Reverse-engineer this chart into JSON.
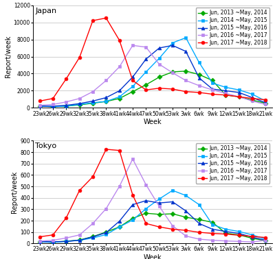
{
  "x_labels": [
    "23wk",
    "26wk",
    "29wk",
    "32wk",
    "35wk",
    "38wk",
    "41wk",
    "44wk",
    "47wk",
    "50wk",
    "53wk",
    "3wk",
    "6wk",
    "9wk",
    "12wk",
    "15wk",
    "18wk",
    "21wk"
  ],
  "x_positions": [
    0,
    1,
    2,
    3,
    4,
    5,
    6,
    7,
    8,
    9,
    10,
    11,
    12,
    13,
    14,
    15,
    16,
    17
  ],
  "japan": {
    "series": [
      {
        "label": "Jun, 2013 ~May, 2014",
        "color": "#00aa00",
        "marker": "D",
        "markerface": "#00aa00",
        "values": [
          200,
          150,
          200,
          350,
          550,
          750,
          1100,
          1900,
          2700,
          3600,
          4200,
          4300,
          3900,
          3200,
          1500,
          1300,
          900,
          550
        ]
      },
      {
        "label": "Jun, 2014 ~May, 2015",
        "color": "#00aaff",
        "marker": "s",
        "markerface": "#00aaff",
        "values": [
          200,
          150,
          200,
          400,
          600,
          750,
          1300,
          2500,
          4200,
          5800,
          7600,
          8200,
          5300,
          2900,
          2400,
          2100,
          1600,
          800
        ]
      },
      {
        "label": "Jun, 2015 ~May, 2016",
        "color": "#0033cc",
        "marker": "^",
        "markerface": "#0033cc",
        "values": [
          200,
          200,
          300,
          500,
          800,
          1200,
          2000,
          3600,
          5700,
          7000,
          7300,
          6600,
          3500,
          2200,
          2000,
          1800,
          1200,
          600
        ]
      },
      {
        "label": "Jun, 2016 ~May, 2017",
        "color": "#bb88ee",
        "marker": "s",
        "markerface": "#bb88ee",
        "values": [
          300,
          400,
          700,
          1100,
          1900,
          3200,
          4800,
          7300,
          7100,
          5100,
          4100,
          3200,
          2600,
          2100,
          1700,
          1300,
          800,
          400
        ]
      },
      {
        "label": "Jun, 2017 ~May, 2018",
        "color": "#ff0000",
        "marker": "o",
        "markerface": "#ff0000",
        "values": [
          800,
          1100,
          3400,
          5900,
          10200,
          10500,
          7900,
          3200,
          2100,
          2300,
          2200,
          1900,
          1800,
          1600,
          1500,
          1300,
          1100,
          950
        ]
      }
    ],
    "title": "Japan",
    "ylabel": "Report/week",
    "ylim": [
      0,
      12000
    ],
    "yticks": [
      0,
      2000,
      4000,
      6000,
      8000,
      10000,
      12000
    ]
  },
  "tokyo": {
    "series": [
      {
        "label": "Jun, 2013 ~May, 2014",
        "color": "#00aa00",
        "marker": "D",
        "markerface": "#00aa00",
        "values": [
          15,
          10,
          20,
          30,
          60,
          100,
          145,
          220,
          265,
          255,
          260,
          230,
          210,
          185,
          90,
          75,
          45,
          25
        ]
      },
      {
        "label": "Jun, 2014 ~May, 2015",
        "color": "#00aaff",
        "marker": "s",
        "markerface": "#00aaff",
        "values": [
          15,
          10,
          18,
          28,
          48,
          78,
          145,
          205,
          305,
          390,
          465,
          420,
          340,
          165,
          125,
          105,
          75,
          38
        ]
      },
      {
        "label": "Jun, 2015 ~May, 2016",
        "color": "#0033cc",
        "marker": "^",
        "markerface": "#0033cc",
        "values": [
          15,
          15,
          18,
          28,
          58,
          95,
          195,
          340,
          375,
          355,
          365,
          285,
          175,
          125,
          105,
          88,
          55,
          28
        ]
      },
      {
        "label": "Jun, 2016 ~May, 2017",
        "color": "#bb88ee",
        "marker": "s",
        "markerface": "#bb88ee",
        "values": [
          20,
          28,
          48,
          75,
          175,
          305,
          500,
          740,
          515,
          325,
          155,
          65,
          38,
          28,
          22,
          18,
          13,
          28
        ]
      },
      {
        "label": "Jun, 2017 ~May, 2018",
        "color": "#ff0000",
        "marker": "o",
        "markerface": "#ff0000",
        "values": [
          58,
          75,
          225,
          465,
          585,
          825,
          815,
          425,
          175,
          145,
          125,
          115,
          98,
          88,
          82,
          72,
          62,
          52
        ]
      }
    ],
    "title": "Tokyo",
    "ylabel": "Report/week",
    "ylim": [
      0,
      900
    ],
    "yticks": [
      0,
      100,
      200,
      300,
      400,
      500,
      600,
      700,
      800,
      900
    ]
  },
  "xlabel": "Week",
  "background_color": "#ffffff",
  "grid_color": "#c8c8c8",
  "legend_fontsize": 5.5,
  "axis_label_fontsize": 7,
  "tick_fontsize": 5.5,
  "title_fontsize": 8,
  "marker_size": 3.5,
  "line_width": 1.0
}
